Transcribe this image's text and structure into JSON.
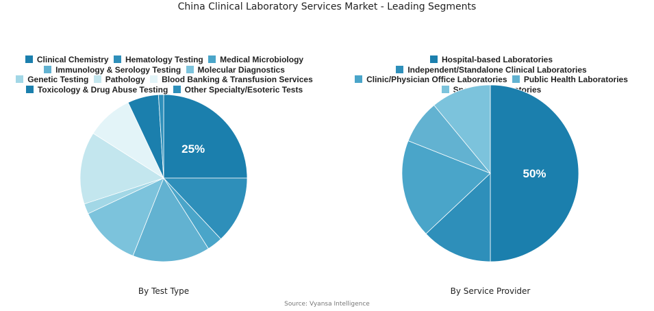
{
  "title": "China Clinical Laboratory Services Market - Leading Segments",
  "source": "Source: Vyansa Intelligence",
  "chart_data": [
    {
      "type": "pie",
      "subtitle": "By Test Type",
      "legend_placement": "top",
      "categories": [
        "Clinical Chemistry",
        "Hematology Testing",
        "Medical Microbiology",
        "Immunology & Serology Testing",
        "Molecular Diagnostics",
        "Genetic Testing",
        "Pathology",
        "Blood Banking & Transfusion Services",
        "Toxicology & Drug Abuse Testing",
        "Other Specialty/Esoteric Tests"
      ],
      "values": [
        25,
        13,
        3,
        15,
        12,
        2,
        14,
        9,
        6,
        1
      ],
      "colors": [
        "#1b7fad",
        "#2e8fba",
        "#4aa5c9",
        "#62b2d1",
        "#7cc3dc",
        "#a2d7e6",
        "#c3e6ee",
        "#e3f4f8",
        "#1b7fad",
        "#2e8fba"
      ],
      "data_labels": [
        "25%"
      ]
    },
    {
      "type": "pie",
      "subtitle": "By Service Provider",
      "legend_placement": "top",
      "categories": [
        "Hospital-based Laboratories",
        "Independent/Standalone Clinical Laboratories",
        "Clinic/Physician Office Laboratories",
        "Public Health Laboratories",
        "Specialty Laboratories"
      ],
      "values": [
        50,
        13,
        18,
        8,
        11
      ],
      "colors": [
        "#1b7fad",
        "#2e8fba",
        "#4aa5c9",
        "#62b2d1",
        "#7cc3dc"
      ],
      "data_labels": [
        "50%"
      ]
    }
  ]
}
